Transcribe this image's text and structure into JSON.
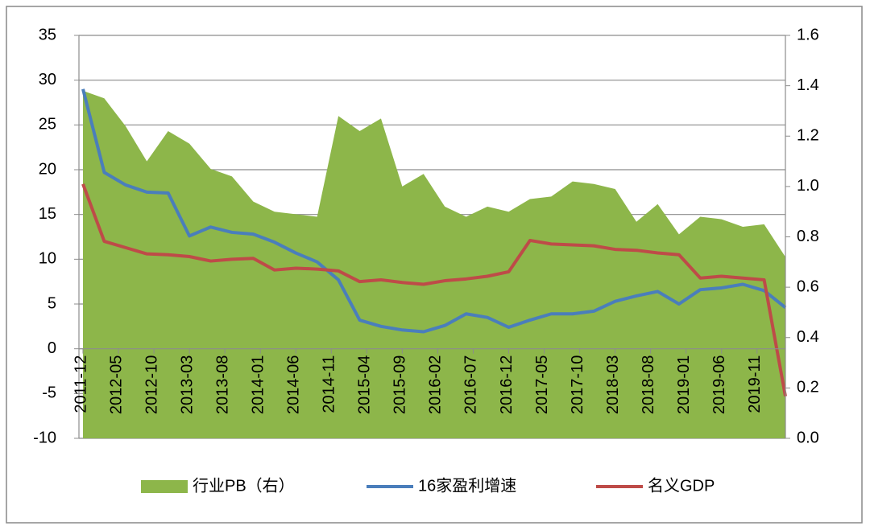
{
  "chart_data": {
    "type": "line",
    "x": [
      "2011-12",
      "2012-03",
      "2012-06",
      "2012-09",
      "2012-12",
      "2013-03",
      "2013-06",
      "2013-09",
      "2013-12",
      "2014-03",
      "2014-06",
      "2014-09",
      "2014-12",
      "2015-03",
      "2015-06",
      "2015-09",
      "2015-12",
      "2016-03",
      "2016-06",
      "2016-09",
      "2016-12",
      "2017-03",
      "2017-06",
      "2017-09",
      "2017-12",
      "2018-03",
      "2018-06",
      "2018-09",
      "2018-12",
      "2019-03",
      "2019-06",
      "2019-09",
      "2019-12",
      "2020-03"
    ],
    "xticks": [
      "2011-12",
      "2012-05",
      "2012-10",
      "2013-03",
      "2013-08",
      "2014-01",
      "2014-06",
      "2014-11",
      "2015-04",
      "2015-09",
      "2016-02",
      "2016-07",
      "2016-12",
      "2017-05",
      "2017-10",
      "2018-03",
      "2018-08",
      "2019-01",
      "2019-06",
      "2019-11"
    ],
    "ylim": [
      -10,
      35
    ],
    "yticks": [
      -10,
      -5,
      0,
      5,
      10,
      15,
      20,
      25,
      30,
      35
    ],
    "y2lim": [
      0,
      1.6
    ],
    "y2ticks": [
      {
        "value": 0,
        "label": "0.0"
      },
      0.2,
      0.4,
      0.6,
      0.8,
      {
        "value": 1,
        "label": "1.0"
      },
      1.2,
      1.4,
      1.6
    ],
    "grid": true,
    "legend": "bottom",
    "series": [
      {
        "name": "行业PB（右）",
        "type": "area",
        "axis": "y2",
        "color": "#8db64a",
        "values": [
          1.38,
          1.35,
          1.24,
          1.1,
          1.22,
          1.17,
          1.07,
          1.04,
          0.94,
          0.9,
          0.89,
          0.88,
          1.28,
          1.22,
          1.27,
          1.0,
          1.05,
          0.92,
          0.88,
          0.92,
          0.9,
          0.95,
          0.96,
          1.02,
          1.01,
          0.99,
          0.86,
          0.93,
          0.81,
          0.88,
          0.87,
          0.84,
          0.85,
          0.72
        ]
      },
      {
        "name": "16家盈利增速",
        "type": "line",
        "color": "#4a7ebb",
        "values": [
          29,
          19.7,
          18.3,
          17.5,
          17.4,
          12.6,
          13.6,
          13,
          12.8,
          11.9,
          10.7,
          9.7,
          7.7,
          3.2,
          2.5,
          2.1,
          1.9,
          2.6,
          3.9,
          3.5,
          2.4,
          3.2,
          3.9,
          3.9,
          4.2,
          5.3,
          5.9,
          6.4,
          5.0,
          6.6,
          6.8,
          7.2,
          6.5,
          4.6
        ]
      },
      {
        "name": "名义GDP",
        "type": "line",
        "color": "#be4b48",
        "values": [
          18.4,
          12,
          11.3,
          10.6,
          10.5,
          10.3,
          9.8,
          10,
          10.1,
          8.8,
          9,
          8.9,
          8.7,
          7.5,
          7.7,
          7.4,
          7.2,
          7.6,
          7.8,
          8.1,
          8.6,
          12.1,
          11.7,
          11.6,
          11.5,
          11.1,
          11,
          10.7,
          10.5,
          7.9,
          8.1,
          7.9,
          7.7,
          -5.3
        ]
      }
    ]
  }
}
